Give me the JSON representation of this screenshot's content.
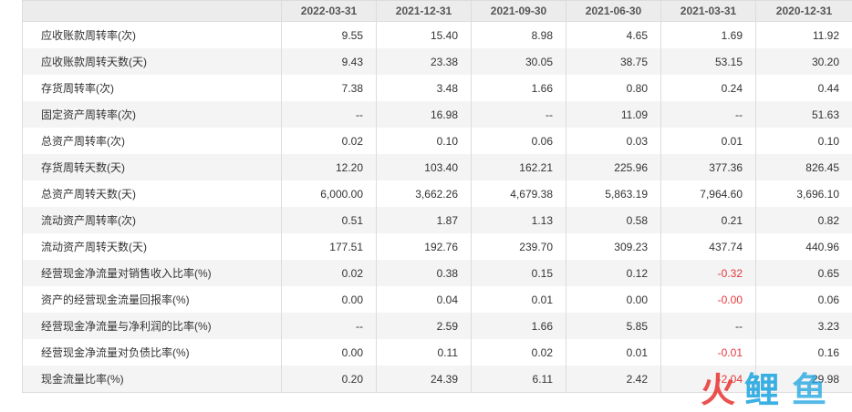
{
  "table": {
    "columns": [
      "2022-03-31",
      "2021-12-31",
      "2021-09-30",
      "2021-06-30",
      "2021-03-31",
      "2020-12-31"
    ],
    "rows": [
      {
        "label": "应收账款周转率(次)",
        "values": [
          "9.55",
          "15.40",
          "8.98",
          "4.65",
          "1.69",
          "11.92"
        ]
      },
      {
        "label": "应收账款周转天数(天)",
        "values": [
          "9.43",
          "23.38",
          "30.05",
          "38.75",
          "53.15",
          "30.20"
        ]
      },
      {
        "label": "存货周转率(次)",
        "values": [
          "7.38",
          "3.48",
          "1.66",
          "0.80",
          "0.24",
          "0.44"
        ]
      },
      {
        "label": "固定资产周转率(次)",
        "values": [
          "--",
          "16.98",
          "--",
          "11.09",
          "--",
          "51.63"
        ]
      },
      {
        "label": "总资产周转率(次)",
        "values": [
          "0.02",
          "0.10",
          "0.06",
          "0.03",
          "0.01",
          "0.10"
        ]
      },
      {
        "label": "存货周转天数(天)",
        "values": [
          "12.20",
          "103.40",
          "162.21",
          "225.96",
          "377.36",
          "826.45"
        ]
      },
      {
        "label": "总资产周转天数(天)",
        "values": [
          "6,000.00",
          "3,662.26",
          "4,679.38",
          "5,863.19",
          "7,964.60",
          "3,696.10"
        ]
      },
      {
        "label": "流动资产周转率(次)",
        "values": [
          "0.51",
          "1.87",
          "1.13",
          "0.58",
          "0.21",
          "0.82"
        ]
      },
      {
        "label": "流动资产周转天数(天)",
        "values": [
          "177.51",
          "192.76",
          "239.70",
          "309.23",
          "437.74",
          "440.96"
        ]
      },
      {
        "label": "经营现金净流量对销售收入比率(%)",
        "values": [
          "0.02",
          "0.38",
          "0.15",
          "0.12",
          "-0.32",
          "0.65"
        ]
      },
      {
        "label": "资产的经营现金流量回报率(%)",
        "values": [
          "0.00",
          "0.04",
          "0.01",
          "0.00",
          "-0.00",
          "0.06"
        ]
      },
      {
        "label": "经营现金净流量与净利润的比率(%)",
        "values": [
          "--",
          "2.59",
          "1.66",
          "5.85",
          "--",
          "3.23"
        ]
      },
      {
        "label": "经营现金净流量对负债比率(%)",
        "values": [
          "0.00",
          "0.11",
          "0.02",
          "0.01",
          "-0.01",
          "0.16"
        ]
      },
      {
        "label": "现金流量比率(%)",
        "values": [
          "0.20",
          "24.39",
          "6.11",
          "2.42",
          "-2.04",
          "29.98"
        ]
      }
    ]
  },
  "watermark": {
    "chars": [
      "火",
      "鲤",
      "鱼"
    ],
    "colors": [
      "#e8332f",
      "#1aa3e0",
      "#1aa3e0"
    ]
  }
}
